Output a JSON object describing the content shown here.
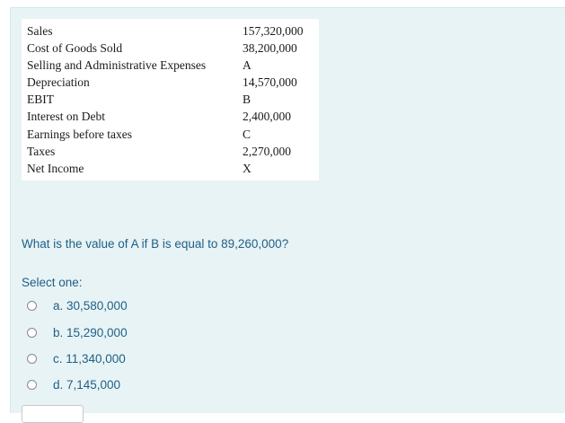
{
  "financials": [
    {
      "label": "Sales",
      "value": "157,320,000"
    },
    {
      "label": "Cost of Goods Sold",
      "value": "38,200,000"
    },
    {
      "label": "Selling and Administrative Expenses",
      "value": "A"
    },
    {
      "label": "Depreciation",
      "value": "14,570,000"
    },
    {
      "label": "EBIT",
      "value": "B"
    },
    {
      "label": "Interest on Debt",
      "value": "2,400,000"
    },
    {
      "label": "Earnings before taxes",
      "value": "C"
    },
    {
      "label": "Taxes",
      "value": "2,270,000"
    },
    {
      "label": "Net Income",
      "value": "X"
    }
  ],
  "question": "What is the value of A if B is equal to 89,260,000?",
  "prompt": "Select one:",
  "options": [
    {
      "label": "a. 30,580,000"
    },
    {
      "label": "b. 15,290,000"
    },
    {
      "label": "c. 11,340,000"
    },
    {
      "label": "d. 7,145,000"
    }
  ]
}
